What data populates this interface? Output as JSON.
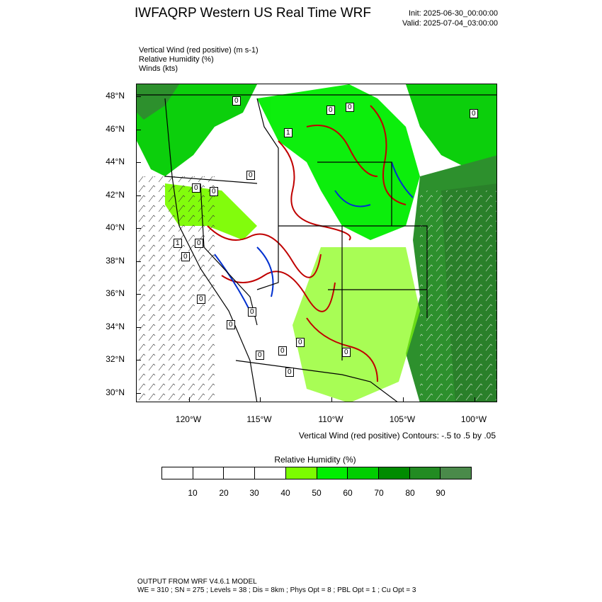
{
  "header": {
    "title": "IWFAQRP Western US Real Time WRF",
    "init": "Init: 2025-06-30_00:00:00",
    "valid": "Valid: 2025-07-04_03:00:00"
  },
  "fields": [
    "Vertical Wind (red positive)   (m s-1)",
    "Relative Humidity   (%)",
    "Winds   (kts)"
  ],
  "map": {
    "lat_labels": [
      "48°N",
      "46°N",
      "44°N",
      "42°N",
      "40°N",
      "38°N",
      "36°N",
      "34°N",
      "32°N",
      "30°N"
    ],
    "lon_labels": [
      "120°W",
      "115°W",
      "110°W",
      "105°W",
      "100°W"
    ],
    "contour_note": "Vertical Wind (red positive) Contours: -.5 to .5 by .05",
    "contour_labels": [
      "0",
      "0",
      "0",
      "1",
      "0",
      "0",
      "0",
      "1",
      "0",
      "0",
      "0",
      "0",
      "0",
      "0",
      "0",
      "0",
      "0",
      "0",
      "0"
    ]
  },
  "colorbar": {
    "title": "Relative Humidity  (%)",
    "labels": [
      "10",
      "20",
      "30",
      "40",
      "50",
      "60",
      "70",
      "80",
      "90"
    ],
    "colors": [
      "#ffffff",
      "#ffffff",
      "#ffffff",
      "#ffffff",
      "#7cfc00",
      "#00ee00",
      "#00cd00",
      "#008b00",
      "#228b22",
      "#4a8a4a"
    ]
  },
  "footer": {
    "line1": "OUTPUT FROM WRF V4.6.1 MODEL",
    "line2": "WE = 310 ; SN = 275 ; Levels = 38 ; Dis = 8km ; Phys Opt = 8 ; PBL Opt = 1 ; Cu Opt = 3"
  }
}
